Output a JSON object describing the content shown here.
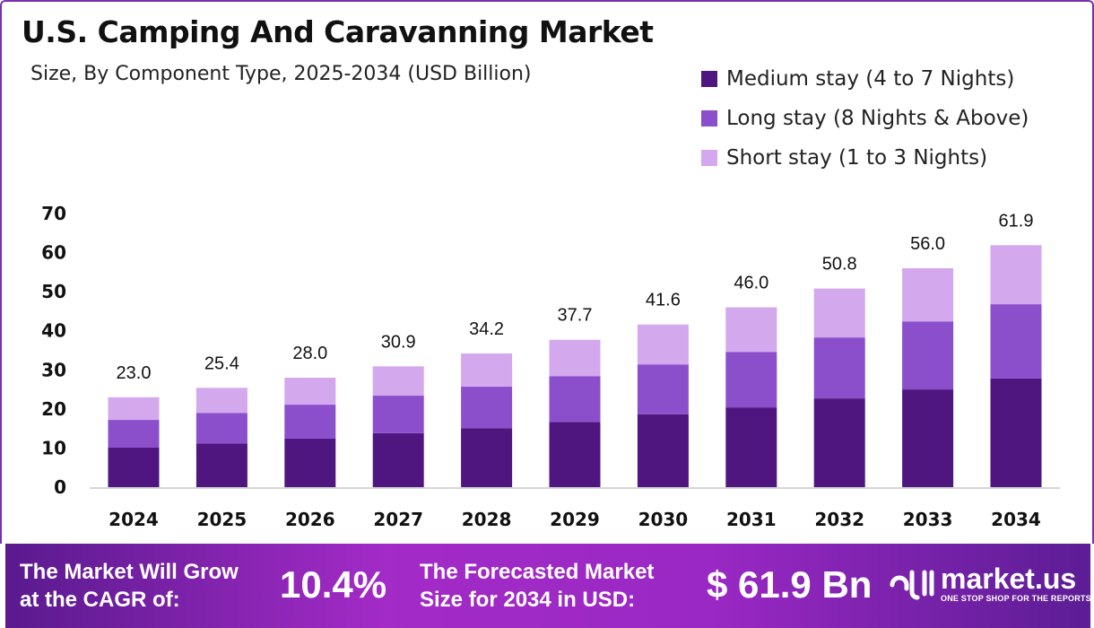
{
  "chart_data": {
    "type": "bar",
    "stacked": true,
    "title": "U.S. Camping And Caravanning Market",
    "subtitle": "Size, By Component Type, 2025-2034 (USD Billion)",
    "categories": [
      "2024",
      "2025",
      "2026",
      "2027",
      "2028",
      "2029",
      "2030",
      "2031",
      "2032",
      "2033",
      "2034"
    ],
    "series": [
      {
        "name": "Medium stay (4 to 7 Nights)",
        "color": "#4f1680",
        "values": [
          10.1,
          11.2,
          12.4,
          13.8,
          15.1,
          16.7,
          18.6,
          20.4,
          22.7,
          25.0,
          27.8
        ]
      },
      {
        "name": "Long stay (8 Nights & Above)",
        "color": "#8b4fcc",
        "values": [
          7.1,
          7.8,
          8.7,
          9.6,
          10.6,
          11.7,
          12.8,
          14.2,
          15.6,
          17.4,
          19.0
        ]
      },
      {
        "name": "Short stay (1 to 3 Nights)",
        "color": "#d3a8ec",
        "values": [
          5.8,
          6.4,
          6.9,
          7.5,
          8.5,
          9.3,
          10.2,
          11.4,
          12.5,
          13.6,
          15.1
        ]
      }
    ],
    "totals": [
      "23.0",
      "25.4",
      "28.0",
      "30.9",
      "34.2",
      "37.7",
      "41.6",
      "46.0",
      "50.8",
      "56.0",
      "61.9"
    ],
    "yticks": [
      "0",
      "10",
      "20",
      "30",
      "40",
      "50",
      "60",
      "70"
    ],
    "ylim": [
      0,
      70
    ],
    "xlabel": "",
    "ylabel": "",
    "grid": false,
    "legend_position": "top-right"
  },
  "banner": {
    "cagr_label_1": "The Market Will Grow",
    "cagr_label_2": "at the CAGR of:",
    "cagr_value": "10.4%",
    "forecast_label_1": "The Forecasted Market",
    "forecast_label_2": "Size for 2034 in USD:",
    "forecast_value": "$ 61.9 Bn",
    "logo_text": "market.us",
    "logo_tagline": "ONE STOP SHOP FOR THE REPORTS"
  }
}
